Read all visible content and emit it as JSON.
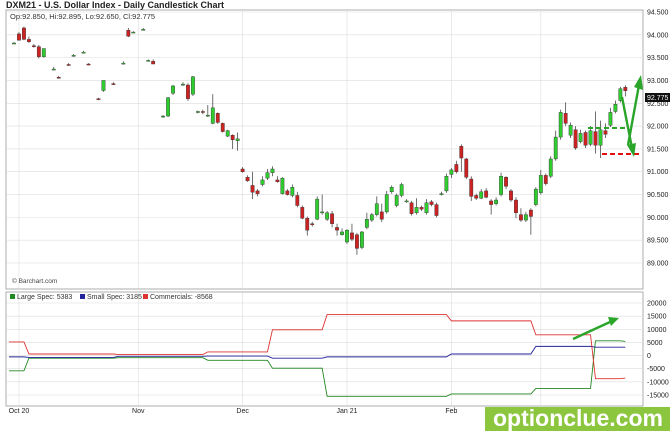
{
  "header": {
    "title": "DXM21 - U.S. Dollar Index - Daily Candlestick Chart",
    "ohlc_text": "Op:92.850, Hi:92.895, Lo:92.650, Cl:92.775"
  },
  "credit": "© Barchart.com",
  "last_price_label": "92.775",
  "watermark": "optionclue.com",
  "colors": {
    "up": "#2ecc2e",
    "down": "#cc2222",
    "large_spec": "#228822",
    "small_spec": "#222299",
    "commercials": "#dd3333",
    "arrow": "#2aa52a",
    "level": "#e01010",
    "grid": "#dcdcdc"
  },
  "chart_data": [
    {
      "type": "candlestick",
      "title": "DXM21 - U.S. Dollar Index - Daily Candlestick Chart",
      "y_ticks": [
        "94.500",
        "94.000",
        "93.500",
        "93.000",
        "92.500",
        "92.000",
        "91.500",
        "91.000",
        "90.500",
        "90.000",
        "89.500",
        "89.000"
      ],
      "ylim": [
        89.0,
        94.5
      ],
      "x_ticks": [
        "Oct 20",
        "Nov",
        "Dec",
        "Jan 21",
        "Feb",
        "Mar"
      ],
      "x_tick_index": [
        1,
        25,
        46,
        67,
        88,
        106
      ],
      "n_slots": 124,
      "candles": [
        [
          0,
          93.8,
          93.84,
          93.82,
          93.82
        ],
        [
          1,
          94.02,
          94.06,
          93.88,
          93.88
        ],
        [
          2,
          94.15,
          94.18,
          93.88,
          93.9
        ],
        [
          3,
          93.9,
          93.96,
          93.82,
          93.85
        ],
        [
          4,
          93.76,
          93.8,
          93.72,
          93.74
        ],
        [
          5,
          93.74,
          93.78,
          93.48,
          93.52
        ],
        [
          6,
          93.52,
          93.7,
          93.5,
          93.7
        ],
        [
          8,
          93.25,
          93.3,
          93.22,
          93.25
        ],
        [
          9,
          93.07,
          93.1,
          93.04,
          93.06
        ],
        [
          11,
          93.35,
          93.38,
          93.32,
          93.34
        ],
        [
          12,
          93.55,
          93.58,
          93.52,
          93.55
        ],
        [
          14,
          93.62,
          93.65,
          93.6,
          93.62
        ],
        [
          15,
          93.36,
          93.38,
          93.33,
          93.35
        ],
        [
          17,
          92.6,
          92.62,
          92.57,
          92.58
        ],
        [
          18,
          92.78,
          93.0,
          92.75,
          93.0
        ],
        [
          20,
          92.93,
          92.96,
          92.9,
          92.92
        ],
        [
          22,
          93.38,
          93.42,
          93.35,
          93.38
        ],
        [
          23,
          94.1,
          94.15,
          93.95,
          93.97
        ],
        [
          24,
          94.06,
          94.08,
          94.04,
          94.06
        ],
        [
          26,
          94.12,
          94.15,
          94.1,
          94.12
        ],
        [
          27,
          93.44,
          93.46,
          93.42,
          93.44
        ],
        [
          28,
          93.42,
          93.46,
          93.36,
          93.36
        ],
        [
          30,
          92.2,
          92.24,
          92.18,
          92.22
        ],
        [
          31,
          92.22,
          92.64,
          92.2,
          92.62
        ],
        [
          32,
          92.72,
          92.9,
          92.68,
          92.88
        ],
        [
          34,
          92.9,
          92.96,
          92.88,
          92.92
        ],
        [
          35,
          92.9,
          92.94,
          92.55,
          92.6
        ],
        [
          36,
          92.7,
          93.1,
          92.66,
          93.08
        ],
        [
          37,
          92.3,
          92.34,
          92.28,
          92.32
        ],
        [
          38,
          92.32,
          92.36,
          92.26,
          92.3
        ],
        [
          39,
          92.22,
          92.46,
          92.2,
          92.24
        ],
        [
          40,
          92.06,
          92.7,
          92.04,
          92.4
        ],
        [
          41,
          92.28,
          92.3,
          92.05,
          92.08
        ],
        [
          42,
          92.06,
          92.08,
          91.86,
          91.88
        ],
        [
          43,
          91.78,
          91.92,
          91.76,
          91.9
        ],
        [
          44,
          91.8,
          91.82,
          91.5,
          91.7
        ],
        [
          45,
          91.68,
          91.86,
          91.46,
          91.72
        ],
        [
          46,
          91.06,
          91.1,
          90.98,
          91.0
        ],
        [
          47,
          90.88,
          90.92,
          90.78,
          90.8
        ],
        [
          48,
          90.7,
          91.0,
          90.4,
          90.55
        ],
        [
          49,
          90.58,
          90.62,
          90.46,
          90.52
        ],
        [
          50,
          90.72,
          90.9,
          90.68,
          90.82
        ],
        [
          51,
          90.86,
          91.06,
          90.82,
          90.98
        ],
        [
          52,
          90.98,
          91.12,
          90.9,
          91.06
        ],
        [
          53,
          90.82,
          90.9,
          90.76,
          90.78
        ],
        [
          54,
          90.52,
          90.88,
          90.5,
          90.86
        ],
        [
          55,
          90.58,
          90.62,
          90.48,
          90.5
        ],
        [
          56,
          90.48,
          90.72,
          90.44,
          90.66
        ],
        [
          57,
          90.48,
          90.56,
          90.22,
          90.26
        ],
        [
          58,
          90.22,
          90.26,
          89.96,
          89.98
        ],
        [
          59,
          89.98,
          90.02,
          89.6,
          89.72
        ],
        [
          60,
          89.86,
          89.9,
          89.8,
          89.84
        ],
        [
          61,
          89.96,
          90.46,
          89.94,
          90.4
        ],
        [
          62,
          90.12,
          90.5,
          90.06,
          90.12
        ],
        [
          63,
          89.96,
          90.14,
          89.92,
          90.1
        ],
        [
          64,
          90.08,
          90.14,
          89.78,
          89.86
        ],
        [
          65,
          89.78,
          89.86,
          89.6,
          89.72
        ],
        [
          66,
          89.62,
          89.76,
          89.6,
          89.68
        ],
        [
          67,
          89.46,
          89.74,
          89.42,
          89.72
        ],
        [
          68,
          89.66,
          89.86,
          89.48,
          89.52
        ],
        [
          69,
          89.62,
          89.66,
          89.18,
          89.32
        ],
        [
          70,
          89.34,
          89.7,
          89.3,
          89.68
        ],
        [
          71,
          89.78,
          90.1,
          89.74,
          89.96
        ],
        [
          72,
          89.94,
          90.1,
          89.9,
          90.06
        ],
        [
          73,
          90.06,
          90.46,
          90.02,
          90.3
        ],
        [
          74,
          90.12,
          90.3,
          89.9,
          89.96
        ],
        [
          75,
          90.12,
          90.58,
          90.08,
          90.5
        ],
        [
          76,
          90.56,
          90.7,
          90.52,
          90.66
        ],
        [
          77,
          90.26,
          90.52,
          90.22,
          90.48
        ],
        [
          78,
          90.48,
          90.76,
          90.44,
          90.72
        ],
        [
          79,
          90.36,
          90.4,
          90.32,
          90.36
        ],
        [
          80,
          90.32,
          90.36,
          90.04,
          90.08
        ],
        [
          81,
          90.1,
          90.42,
          90.06,
          90.22
        ],
        [
          82,
          90.22,
          90.26,
          90.14,
          90.18
        ],
        [
          83,
          90.1,
          90.4,
          90.06,
          90.32
        ],
        [
          84,
          90.34,
          90.38,
          90.24,
          90.28
        ],
        [
          85,
          90.28,
          90.32,
          90.0,
          90.04
        ],
        [
          86,
          90.52,
          90.56,
          90.48,
          90.52
        ],
        [
          87,
          90.58,
          90.96,
          90.54,
          90.9
        ],
        [
          88,
          90.94,
          91.08,
          90.86,
          91.04
        ],
        [
          89,
          91.16,
          91.24,
          90.96,
          91.0
        ],
        [
          90,
          91.56,
          91.6,
          91.0,
          91.3
        ],
        [
          91,
          91.28,
          91.3,
          90.84,
          90.88
        ],
        [
          92,
          90.84,
          90.9,
          90.36,
          90.46
        ],
        [
          93,
          90.48,
          90.52,
          90.38,
          90.42
        ],
        [
          94,
          90.42,
          90.62,
          90.4,
          90.56
        ],
        [
          95,
          90.58,
          90.64,
          90.42,
          90.44
        ],
        [
          96,
          90.36,
          90.4,
          90.06,
          90.28
        ],
        [
          97,
          90.3,
          90.44,
          90.26,
          90.38
        ],
        [
          98,
          90.5,
          90.98,
          90.46,
          90.9
        ],
        [
          99,
          90.88,
          90.9,
          90.62,
          90.68
        ],
        [
          100,
          90.58,
          90.62,
          90.34,
          90.38
        ],
        [
          101,
          90.38,
          90.44,
          89.98,
          90.1
        ],
        [
          102,
          90.06,
          90.2,
          89.9,
          89.94
        ],
        [
          103,
          89.94,
          90.12,
          89.9,
          90.06
        ],
        [
          104,
          90.16,
          90.2,
          89.62,
          90.02
        ],
        [
          105,
          90.28,
          90.66,
          90.24,
          90.62
        ],
        [
          106,
          90.54,
          91.04,
          90.5,
          90.92
        ],
        [
          107,
          90.92,
          90.96,
          90.7,
          90.74
        ],
        [
          108,
          90.9,
          91.34,
          90.86,
          91.28
        ],
        [
          109,
          91.28,
          91.9,
          91.24,
          91.76
        ],
        [
          110,
          91.76,
          92.36,
          91.7,
          92.3
        ],
        [
          111,
          92.28,
          92.52,
          92.0,
          92.06
        ],
        [
          112,
          91.8,
          92.08,
          91.74,
          92.02
        ],
        [
          113,
          91.92,
          92.0,
          91.48,
          91.52
        ],
        [
          114,
          91.66,
          91.92,
          91.62,
          91.84
        ],
        [
          115,
          91.86,
          91.9,
          91.52,
          91.58
        ],
        [
          116,
          91.6,
          92.0,
          91.56,
          91.9
        ],
        [
          117,
          91.88,
          92.32,
          91.4,
          91.58
        ],
        [
          118,
          91.58,
          92.12,
          91.3,
          91.92
        ],
        [
          119,
          91.9,
          92.06,
          91.74,
          91.82
        ],
        [
          120,
          92.02,
          92.4,
          91.98,
          92.3
        ],
        [
          121,
          92.32,
          92.56,
          92.28,
          92.48
        ],
        [
          122,
          92.56,
          92.86,
          92.52,
          92.82
        ],
        [
          123,
          92.85,
          92.895,
          92.65,
          92.775
        ]
      ]
    },
    {
      "type": "step-line",
      "y_ticks": [
        "20000",
        "15000",
        "10000",
        "5000",
        "0",
        "-5000",
        "-10000",
        "-15000"
      ],
      "ylim": [
        -17500,
        20000
      ],
      "x_ticks": [
        "Oct 20",
        "Nov",
        "Dec",
        "Jan 21",
        "Feb",
        "Mar"
      ],
      "series": [
        {
          "name": "Large Spec: 5383",
          "key": "large_spec",
          "points": [
            [
              -1,
              -5800
            ],
            [
              2,
              -5800
            ],
            [
              3,
              -1000
            ],
            [
              20,
              -1000
            ],
            [
              21,
              -800
            ],
            [
              38,
              -800
            ],
            [
              39,
              -1800
            ],
            [
              51,
              -1800
            ],
            [
              52,
              -4800
            ],
            [
              62,
              -4800
            ],
            [
              63,
              -15500
            ],
            [
              87,
              -15500
            ],
            [
              88,
              -14600
            ],
            [
              104,
              -14600
            ],
            [
              105,
              -12500
            ],
            [
              116,
              -12500
            ],
            [
              117,
              5600
            ],
            [
              122,
              5600
            ],
            [
              123,
              5383
            ]
          ]
        },
        {
          "name": "Small Spec: 3185",
          "key": "small_spec",
          "points": [
            [
              -1,
              -500
            ],
            [
              2,
              -500
            ],
            [
              3,
              -700
            ],
            [
              20,
              -700
            ],
            [
              21,
              -300
            ],
            [
              38,
              -300
            ],
            [
              39,
              -200
            ],
            [
              51,
              -200
            ],
            [
              52,
              -1000
            ],
            [
              62,
              -1000
            ],
            [
              63,
              -500
            ],
            [
              87,
              -500
            ],
            [
              88,
              600
            ],
            [
              104,
              600
            ],
            [
              105,
              3500
            ],
            [
              116,
              3500
            ],
            [
              117,
              3200
            ],
            [
              122,
              3200
            ],
            [
              123,
              3185
            ]
          ]
        },
        {
          "name": "Commercials: -8568",
          "key": "commercials",
          "points": [
            [
              -1,
              5200
            ],
            [
              2,
              5200
            ],
            [
              3,
              600
            ],
            [
              20,
              600
            ],
            [
              21,
              400
            ],
            [
              38,
              400
            ],
            [
              39,
              1400
            ],
            [
              51,
              1400
            ],
            [
              52,
              9800
            ],
            [
              62,
              9800
            ],
            [
              63,
              15600
            ],
            [
              87,
              15600
            ],
            [
              88,
              13200
            ],
            [
              104,
              13200
            ],
            [
              105,
              7900
            ],
            [
              116,
              7900
            ],
            [
              117,
              -8800
            ],
            [
              122,
              -8800
            ],
            [
              123,
              -8568
            ]
          ]
        }
      ]
    }
  ]
}
